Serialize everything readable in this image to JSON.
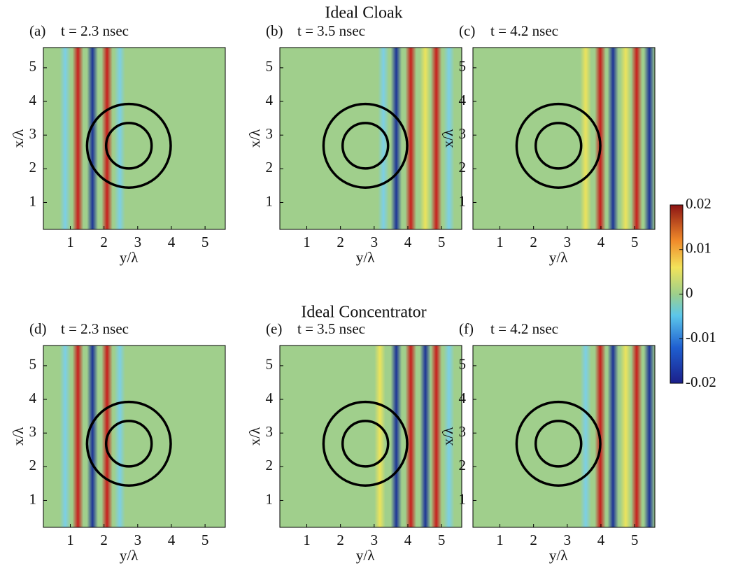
{
  "row_titles": [
    "Ideal Cloak",
    "Ideal Concentrator"
  ],
  "chart_data": [
    {
      "type": "heatmap",
      "label": "(a)",
      "title": "t = 2.3 nsec",
      "xlabel": "y/λ",
      "ylabel": "x/λ",
      "xlim": [
        0.2,
        5.6
      ],
      "ylim": [
        0.2,
        5.6
      ],
      "xticks": [
        1,
        2,
        3,
        4,
        5
      ],
      "yticks": [
        1,
        2,
        3,
        4,
        5
      ]
    },
    {
      "type": "heatmap",
      "label": "(b)",
      "title": "t = 3.5 nsec",
      "xlabel": "y/λ",
      "ylabel": "x/λ",
      "xlim": [
        0.2,
        5.6
      ],
      "ylim": [
        0.2,
        5.6
      ],
      "xticks": [
        1,
        2,
        3,
        4,
        5
      ],
      "yticks": [
        1,
        2,
        3,
        4,
        5
      ]
    },
    {
      "type": "heatmap",
      "label": "(c)",
      "title": "t = 4.2 nsec",
      "xlabel": "y/λ",
      "ylabel": "x/λ",
      "xlim": [
        0.2,
        5.6
      ],
      "ylim": [
        0.2,
        5.6
      ],
      "xticks": [
        1,
        2,
        3,
        4,
        5
      ],
      "yticks": [
        1,
        2,
        3,
        4,
        5
      ]
    },
    {
      "type": "heatmap",
      "label": "(d)",
      "title": "t = 2.3 nsec",
      "xlabel": "y/λ",
      "ylabel": "x/λ",
      "xlim": [
        0.2,
        5.6
      ],
      "ylim": [
        0.2,
        5.6
      ],
      "xticks": [
        1,
        2,
        3,
        4,
        5
      ],
      "yticks": [
        1,
        2,
        3,
        4,
        5
      ]
    },
    {
      "type": "heatmap",
      "label": "(e)",
      "title": "t = 3.5 nsec",
      "xlabel": "y/λ",
      "ylabel": "x/λ",
      "xlim": [
        0.2,
        5.6
      ],
      "ylim": [
        0.2,
        5.6
      ],
      "xticks": [
        1,
        2,
        3,
        4,
        5
      ],
      "yticks": [
        1,
        2,
        3,
        4,
        5
      ]
    },
    {
      "type": "heatmap",
      "label": "(f)",
      "title": "t = 4.2 nsec",
      "xlabel": "y/λ",
      "ylabel": "x/λ",
      "xlim": [
        0.2,
        5.6
      ],
      "ylim": [
        0.2,
        5.6
      ],
      "xticks": [
        1,
        2,
        3,
        4,
        5
      ],
      "yticks": [
        1,
        2,
        3,
        4,
        5
      ]
    }
  ],
  "colorbar": {
    "lim": [
      -0.02,
      0.02
    ],
    "ticks": [
      0.02,
      0.01,
      0,
      -0.01,
      -0.02
    ]
  }
}
